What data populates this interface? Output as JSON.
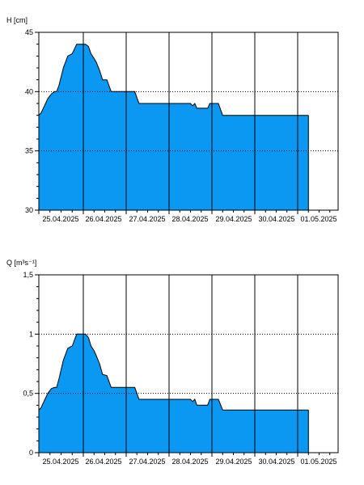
{
  "chart_data": [
    {
      "type": "area",
      "ylabel": "H [cm]",
      "ylim": [
        30,
        45
      ],
      "yticks": [
        30,
        35,
        40,
        45
      ],
      "ytick_labels": [
        "30",
        "35",
        "40",
        "45"
      ],
      "y_gridlines": [
        35,
        40
      ],
      "x_labels": [
        "25.04.2025",
        "26.04.2025",
        "27.04.2025",
        "28.04.2025",
        "29.04.2025",
        "30.04.2025",
        "01.05.2025"
      ],
      "grid": "vertical solid lines at day boundaries, horizontal dotted lines",
      "fill_color": "#0a98f2",
      "series": [
        {
          "points": [
            [
              0.0,
              38.0
            ],
            [
              0.05,
              38.2
            ],
            [
              0.1,
              38.6
            ],
            [
              0.15,
              39.0
            ],
            [
              0.2,
              39.4
            ],
            [
              0.28,
              39.8
            ],
            [
              0.35,
              40.0
            ],
            [
              0.4,
              40.0
            ],
            [
              0.45,
              40.5
            ],
            [
              0.55,
              42.0
            ],
            [
              0.65,
              43.0
            ],
            [
              0.75,
              43.2
            ],
            [
              0.85,
              44.0
            ],
            [
              0.95,
              44.0
            ],
            [
              1.05,
              44.0
            ],
            [
              1.12,
              43.8
            ],
            [
              1.18,
              43.2
            ],
            [
              1.25,
              42.8
            ],
            [
              1.3,
              42.5
            ],
            [
              1.38,
              41.8
            ],
            [
              1.45,
              41.0
            ],
            [
              1.55,
              41.0
            ],
            [
              1.65,
              40.0
            ],
            [
              1.75,
              40.0
            ],
            [
              2.0,
              40.0
            ],
            [
              2.2,
              40.0
            ],
            [
              2.3,
              39.0
            ],
            [
              2.6,
              39.0
            ],
            [
              3.0,
              39.0
            ],
            [
              3.5,
              39.0
            ],
            [
              3.55,
              38.8
            ],
            [
              3.6,
              39.0
            ],
            [
              3.65,
              38.6
            ],
            [
              3.9,
              38.6
            ],
            [
              3.95,
              39.0
            ],
            [
              4.15,
              39.0
            ],
            [
              4.25,
              38.0
            ],
            [
              4.6,
              38.0
            ],
            [
              5.2,
              38.0
            ],
            [
              5.8,
              38.0
            ],
            [
              6.25,
              38.0
            ]
          ]
        }
      ]
    },
    {
      "type": "area",
      "ylabel": "Q [m³s⁻¹]",
      "ylim": [
        0,
        1.5
      ],
      "yticks": [
        0,
        0.5,
        1,
        1.5
      ],
      "ytick_labels": [
        "0",
        "0,5",
        "1",
        "1,5"
      ],
      "y_gridlines": [
        0.5,
        1
      ],
      "x_labels": [
        "25.04.2025",
        "26.04.2025",
        "27.04.2025",
        "28.04.2025",
        "29.04.2025",
        "30.04.2025",
        "01.05.2025"
      ],
      "grid": "vertical solid lines at day boundaries, horizontal dotted lines",
      "fill_color": "#0a98f2",
      "series": [
        {
          "points": [
            [
              0.0,
              0.36
            ],
            [
              0.05,
              0.38
            ],
            [
              0.1,
              0.42
            ],
            [
              0.15,
              0.46
            ],
            [
              0.2,
              0.5
            ],
            [
              0.28,
              0.54
            ],
            [
              0.35,
              0.55
            ],
            [
              0.4,
              0.55
            ],
            [
              0.45,
              0.62
            ],
            [
              0.55,
              0.78
            ],
            [
              0.65,
              0.88
            ],
            [
              0.75,
              0.9
            ],
            [
              0.85,
              1.0
            ],
            [
              0.95,
              1.0
            ],
            [
              1.05,
              1.0
            ],
            [
              1.12,
              0.97
            ],
            [
              1.18,
              0.9
            ],
            [
              1.25,
              0.86
            ],
            [
              1.3,
              0.82
            ],
            [
              1.38,
              0.75
            ],
            [
              1.45,
              0.66
            ],
            [
              1.55,
              0.65
            ],
            [
              1.65,
              0.55
            ],
            [
              1.75,
              0.55
            ],
            [
              2.0,
              0.55
            ],
            [
              2.2,
              0.55
            ],
            [
              2.3,
              0.45
            ],
            [
              2.6,
              0.45
            ],
            [
              3.0,
              0.45
            ],
            [
              3.5,
              0.45
            ],
            [
              3.55,
              0.43
            ],
            [
              3.6,
              0.45
            ],
            [
              3.65,
              0.4
            ],
            [
              3.9,
              0.4
            ],
            [
              3.95,
              0.45
            ],
            [
              4.15,
              0.45
            ],
            [
              4.25,
              0.36
            ],
            [
              4.6,
              0.36
            ],
            [
              5.2,
              0.36
            ],
            [
              5.8,
              0.36
            ],
            [
              6.25,
              0.36
            ]
          ]
        }
      ]
    }
  ]
}
